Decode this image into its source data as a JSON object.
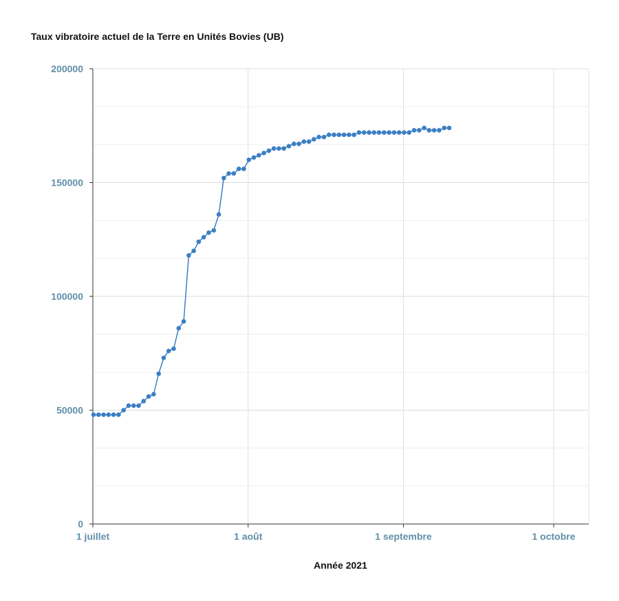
{
  "chart_data": {
    "type": "line",
    "title": "Taux vibratoire actuel de la Terre en Unités Bovies (UB)",
    "xlabel": "Année 2021",
    "ylabel": "",
    "x_tick_labels": [
      {
        "date": "2021-07-01",
        "label": "1 juillet"
      },
      {
        "date": "2021-08-01",
        "label": "1 août"
      },
      {
        "date": "2021-09-01",
        "label": "1 septembre"
      },
      {
        "date": "2021-10-01",
        "label": "1 octobre"
      }
    ],
    "y_ticks": [
      0,
      50000,
      100000,
      150000,
      200000
    ],
    "ylim": [
      0,
      200000
    ],
    "xlim": [
      "2021-07-01",
      "2021-10-08"
    ],
    "grid": true,
    "colors": {
      "series": "#3b7fc4",
      "tick_labels": "#5f8fa8",
      "grid": "#e0e0e0"
    },
    "series": [
      {
        "points": [
          [
            "2021-07-01",
            48000
          ],
          [
            "2021-07-02",
            48000
          ],
          [
            "2021-07-03",
            48000
          ],
          [
            "2021-07-04",
            48000
          ],
          [
            "2021-07-05",
            48000
          ],
          [
            "2021-07-06",
            48000
          ],
          [
            "2021-07-07",
            50000
          ],
          [
            "2021-07-08",
            52000
          ],
          [
            "2021-07-09",
            52000
          ],
          [
            "2021-07-10",
            52000
          ],
          [
            "2021-07-11",
            54000
          ],
          [
            "2021-07-12",
            56000
          ],
          [
            "2021-07-13",
            57000
          ],
          [
            "2021-07-14",
            66000
          ],
          [
            "2021-07-15",
            73000
          ],
          [
            "2021-07-16",
            76000
          ],
          [
            "2021-07-17",
            77000
          ],
          [
            "2021-07-18",
            86000
          ],
          [
            "2021-07-19",
            89000
          ],
          [
            "2021-07-20",
            118000
          ],
          [
            "2021-07-21",
            120000
          ],
          [
            "2021-07-22",
            124000
          ],
          [
            "2021-07-23",
            126000
          ],
          [
            "2021-07-24",
            128000
          ],
          [
            "2021-07-25",
            129000
          ],
          [
            "2021-07-26",
            136000
          ],
          [
            "2021-07-27",
            152000
          ],
          [
            "2021-07-28",
            154000
          ],
          [
            "2021-07-29",
            154000
          ],
          [
            "2021-07-30",
            156000
          ],
          [
            "2021-07-31",
            156000
          ],
          [
            "2021-08-01",
            160000
          ],
          [
            "2021-08-02",
            161000
          ],
          [
            "2021-08-03",
            162000
          ],
          [
            "2021-08-04",
            163000
          ],
          [
            "2021-08-05",
            164000
          ],
          [
            "2021-08-06",
            165000
          ],
          [
            "2021-08-07",
            165000
          ],
          [
            "2021-08-08",
            165000
          ],
          [
            "2021-08-09",
            166000
          ],
          [
            "2021-08-10",
            167000
          ],
          [
            "2021-08-11",
            167000
          ],
          [
            "2021-08-12",
            168000
          ],
          [
            "2021-08-13",
            168000
          ],
          [
            "2021-08-14",
            169000
          ],
          [
            "2021-08-15",
            170000
          ],
          [
            "2021-08-16",
            170000
          ],
          [
            "2021-08-17",
            171000
          ],
          [
            "2021-08-18",
            171000
          ],
          [
            "2021-08-19",
            171000
          ],
          [
            "2021-08-20",
            171000
          ],
          [
            "2021-08-21",
            171000
          ],
          [
            "2021-08-22",
            171000
          ],
          [
            "2021-08-23",
            172000
          ],
          [
            "2021-08-24",
            172000
          ],
          [
            "2021-08-25",
            172000
          ],
          [
            "2021-08-26",
            172000
          ],
          [
            "2021-08-27",
            172000
          ],
          [
            "2021-08-28",
            172000
          ],
          [
            "2021-08-29",
            172000
          ],
          [
            "2021-08-30",
            172000
          ],
          [
            "2021-08-31",
            172000
          ],
          [
            "2021-09-01",
            172000
          ],
          [
            "2021-09-02",
            172000
          ],
          [
            "2021-09-03",
            173000
          ],
          [
            "2021-09-04",
            173000
          ],
          [
            "2021-09-05",
            174000
          ],
          [
            "2021-09-06",
            173000
          ],
          [
            "2021-09-07",
            173000
          ],
          [
            "2021-09-08",
            173000
          ],
          [
            "2021-09-09",
            174000
          ],
          [
            "2021-09-10",
            174000
          ]
        ]
      }
    ]
  }
}
